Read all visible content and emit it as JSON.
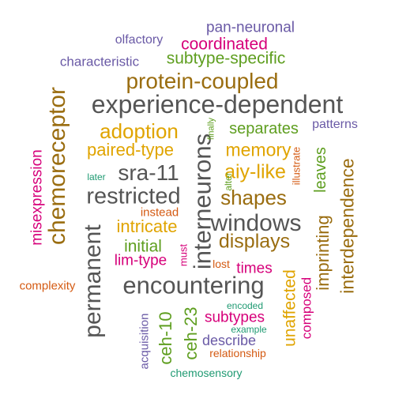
{
  "colors": {
    "purple": "#6a5aa6",
    "magenta": "#d6007a",
    "green": "#5e9e1f",
    "brown": "#9a6d10",
    "gray": "#555555",
    "gold": "#e0a400",
    "orange": "#d45a12",
    "teal": "#1f9a72"
  },
  "words": {
    "pan_neuronal": "pan-neuronal",
    "olfactory": "olfactory",
    "coordinated": "coordinated",
    "characteristic": "characteristic",
    "subtype_specific": "subtype-specific",
    "protein_coupled": "protein-coupled",
    "experience_dependent": "experience-dependent",
    "chemoreceptor": "chemoreceptor",
    "adoption": "adoption",
    "interneurons": "interneurons",
    "finally": "finally",
    "separates": "separates",
    "patterns": "patterns",
    "memory": "memory",
    "paired_type": "paired-type",
    "misexpression": "misexpression",
    "sra_11": "sra-11",
    "aiy_like": "aiy-like",
    "illustrate": "illustrate",
    "later": "later",
    "alter": "alter",
    "leaves": "leaves",
    "interdependence": "interdependence",
    "restricted": "restricted",
    "shapes": "shapes",
    "instead": "instead",
    "windows": "windows",
    "intricate": "intricate",
    "permanent": "permanent",
    "displays": "displays",
    "imprinting": "imprinting",
    "initial": "initial",
    "must": "must",
    "lim_type": "lim-type",
    "lost": "lost",
    "times": "times",
    "unaffected": "unaffected",
    "composed": "composed",
    "complexity": "complexity",
    "encountering": "encountering",
    "encoded": "encoded",
    "acquisition": "acquisition",
    "ceh_10": "ceh-10",
    "ceh_23": "ceh-23",
    "subtypes": "subtypes",
    "example": "example",
    "describe": "describe",
    "relationship": "relationship",
    "chemosensory": "chemosensory"
  }
}
